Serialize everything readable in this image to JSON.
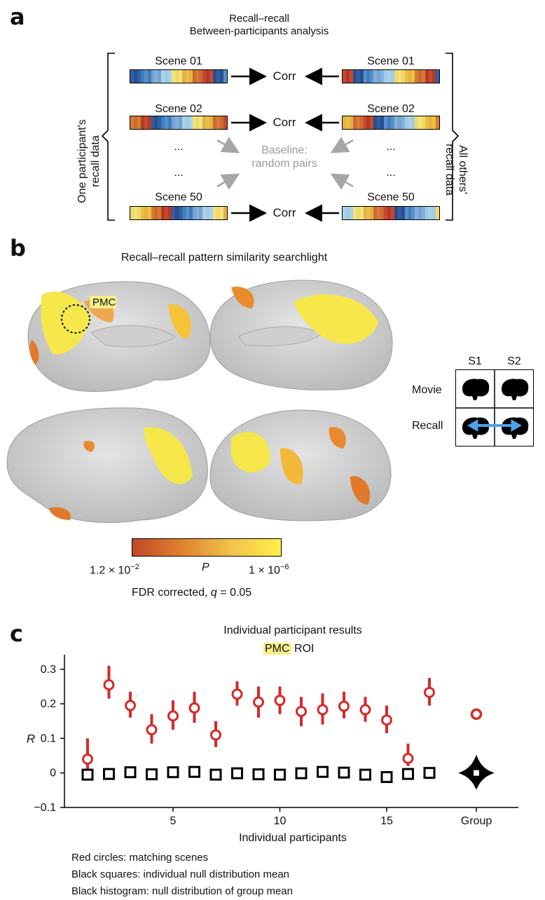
{
  "panel_a": {
    "letter": "a",
    "title_line1": "Recall–recall",
    "title_line2": "Between-participants analysis",
    "left_label_line1": "One participant's",
    "left_label_line2": "recall data",
    "right_label_line1": "All others'",
    "right_label_line2": "recall data",
    "scenes": [
      {
        "left": "Scene 01",
        "right": "Scene 01",
        "corr": "Corr"
      },
      {
        "left": "Scene 02",
        "right": "Scene 02",
        "corr": "Corr"
      },
      {
        "left": "Scene 50",
        "right": "Scene 50",
        "corr": "Corr"
      }
    ],
    "ellipsis": "...",
    "baseline_line1": "Baseline:",
    "baseline_line2": "random pairs",
    "stripe_colors": [
      "#2f5fa8",
      "#e8c23b",
      "#7fb3d9",
      "#c9472d",
      "#f0e37a",
      "#3b7fbf",
      "#d97b2e",
      "#9fcbe6",
      "#2a4f8f",
      "#e6b04a",
      "#7a9fd0",
      "#b23a2a",
      "#f2d76b",
      "#5a8fc6",
      "#ca6a35",
      "#a9d2ea"
    ]
  },
  "panel_b": {
    "letter": "b",
    "title": "Recall–recall pattern similarity searchlight",
    "pmc_label": "PMC",
    "key": {
      "col1": "S1",
      "col2": "S2",
      "row1": "Movie",
      "row2": "Recall"
    },
    "colorbar": {
      "left": "1.2 × 10",
      "left_exp": "−2",
      "middle": "P",
      "right": "1 × 10",
      "right_exp": "−6",
      "note_pre": "FDR corrected, ",
      "note_q": "q",
      "note_post": " = 0.05",
      "color_low": "#c1472a",
      "color_high": "#fff04a"
    }
  },
  "panel_c": {
    "letter": "c",
    "title": "Individual participant results",
    "roi_highlight": "PMC",
    "roi_rest": " ROI",
    "legend_lines": [
      "Red circles: matching scenes",
      "Black squares: individual null distribution mean",
      "Black histogram: null distribution of group mean"
    ],
    "colors": {
      "red": "#d42a2a",
      "highlight": "#f6f08a"
    }
  },
  "chart_data": {
    "type": "scatter",
    "title": "Individual participant results",
    "xlabel": "Individual participants",
    "ylabel": "R",
    "ylim": [
      -0.1,
      0.33
    ],
    "yticks": [
      -0.1,
      0,
      0.1,
      0.2,
      0.3
    ],
    "ytick_labels": [
      "−0.1",
      "0",
      "0.1",
      "0.2",
      "0.3"
    ],
    "xticks": [
      5,
      10,
      15
    ],
    "xtick_labels": [
      "5",
      "10",
      "15"
    ],
    "group_label": "Group",
    "series": [
      {
        "name": "Red circles: matching scenes",
        "x": [
          1,
          2,
          3,
          4,
          5,
          6,
          7,
          8,
          9,
          10,
          11,
          12,
          13,
          14,
          15,
          16,
          17
        ],
        "values": [
          0.04,
          0.255,
          0.195,
          0.125,
          0.165,
          0.188,
          0.11,
          0.228,
          0.205,
          0.21,
          0.178,
          0.183,
          0.193,
          0.183,
          0.153,
          0.042,
          0.233
        ],
        "err_low": [
          0.0,
          0.215,
          0.16,
          0.085,
          0.125,
          0.145,
          0.075,
          0.195,
          0.16,
          0.17,
          0.135,
          0.14,
          0.158,
          0.148,
          0.115,
          0.02,
          0.195
        ],
        "err_high": [
          0.1,
          0.31,
          0.235,
          0.17,
          0.21,
          0.235,
          0.15,
          0.265,
          0.25,
          0.25,
          0.22,
          0.23,
          0.235,
          0.22,
          0.195,
          0.085,
          0.275
        ]
      },
      {
        "name": "Black squares: individual null distribution mean",
        "x": [
          1,
          2,
          3,
          4,
          5,
          6,
          7,
          8,
          9,
          10,
          11,
          12,
          13,
          14,
          15,
          16,
          17
        ],
        "values": [
          -0.005,
          -0.003,
          0.002,
          -0.004,
          0.002,
          0.003,
          -0.005,
          -0.001,
          -0.004,
          -0.005,
          -0.001,
          0.003,
          0.001,
          -0.005,
          -0.012,
          -0.003,
          0.0
        ]
      },
      {
        "name": "Group",
        "x": [
          "Group"
        ],
        "values": [
          0.17
        ],
        "null_mean": 0.0
      }
    ]
  }
}
